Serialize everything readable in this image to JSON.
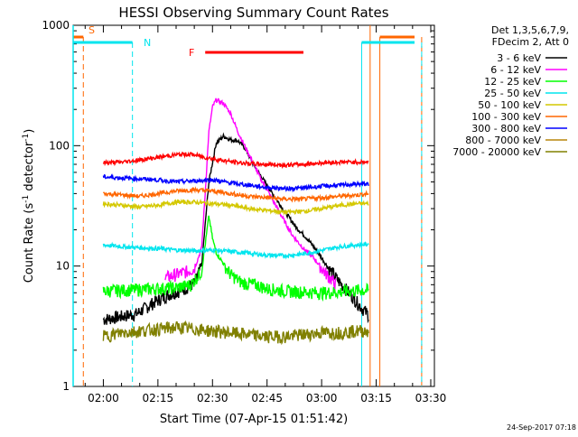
{
  "chart_data": {
    "type": "line",
    "title": "HESSI Observing Summary Count Rates",
    "xlabel": "Start Time (07-Apr-15 01:51:42)",
    "ylabel_parts": [
      "Count Rate (s",
      "-1",
      " detector",
      "-1",
      ")"
    ],
    "ylabel": "Count Rate (s-1 detector-1)",
    "x_range_minutes": [
      "01:51:42",
      "03:31:00"
    ],
    "x_ticks": [
      "02:00",
      "02:15",
      "02:30",
      "02:45",
      "03:00",
      "03:15",
      "03:30"
    ],
    "y_scale": "log",
    "ylim": [
      1,
      1000
    ],
    "y_ticks": [
      "1",
      "10",
      "100",
      "1000"
    ],
    "grid": false,
    "legend_position": "right",
    "legend_header": [
      "Det 1,3,5,6,7,9,",
      "FDecim 2, Att 0"
    ],
    "timestamp": "24-Sep-2017 07:18",
    "flags": [
      {
        "label": "S",
        "color": "#ff6600"
      },
      {
        "label": "N",
        "color": "#00e5ee"
      },
      {
        "label": "F",
        "color": "#ff0000"
      }
    ],
    "series": [
      {
        "name": "3 - 6 keV",
        "color": "#000000",
        "points": [
          [
            "02:00",
            3.6
          ],
          [
            "02:09",
            4.0
          ],
          [
            "02:14",
            5.0
          ],
          [
            "02:18",
            5.8
          ],
          [
            "02:22",
            6.4
          ],
          [
            "02:25",
            7.2
          ],
          [
            "02:27",
            10
          ],
          [
            "02:28",
            22
          ],
          [
            "02:29",
            50
          ],
          [
            "02:31",
            105
          ],
          [
            "02:33",
            120
          ],
          [
            "02:35",
            112
          ],
          [
            "02:37",
            110
          ],
          [
            "02:39",
            95
          ],
          [
            "02:41",
            72
          ],
          [
            "02:44",
            52
          ],
          [
            "02:47",
            38
          ],
          [
            "02:50",
            28
          ],
          [
            "02:53",
            21
          ],
          [
            "02:56",
            17
          ],
          [
            "02:59",
            13
          ],
          [
            "03:02",
            9.5
          ],
          [
            "03:05",
            7.3
          ],
          [
            "03:08",
            5.8
          ],
          [
            "03:11",
            4.5
          ],
          [
            "03:13",
            3.9
          ]
        ]
      },
      {
        "name": "6 - 12 keV",
        "color": "#ff00ff",
        "points": [
          [
            "02:17",
            8.0
          ],
          [
            "02:20",
            8.5
          ],
          [
            "02:23",
            9.0
          ],
          [
            "02:25",
            9.5
          ],
          [
            "02:27",
            14
          ],
          [
            "02:28",
            40
          ],
          [
            "02:29",
            130
          ],
          [
            "02:30",
            210
          ],
          [
            "02:31",
            240
          ],
          [
            "02:33",
            225
          ],
          [
            "02:35",
            185
          ],
          [
            "02:37",
            130
          ],
          [
            "02:40",
            85
          ],
          [
            "02:43",
            55
          ],
          [
            "02:46",
            38
          ],
          [
            "02:49",
            26
          ],
          [
            "02:52",
            18
          ],
          [
            "02:55",
            14
          ],
          [
            "02:58",
            11.5
          ],
          [
            "03:01",
            8.8
          ],
          [
            "03:04",
            7.0
          ]
        ]
      },
      {
        "name": "12 - 25 keV",
        "color": "#00ff00",
        "points": [
          [
            "02:00",
            6.2
          ],
          [
            "02:05",
            6.3
          ],
          [
            "02:10",
            6.4
          ],
          [
            "02:15",
            6.5
          ],
          [
            "02:20",
            6.6
          ],
          [
            "02:24",
            7.0
          ],
          [
            "02:27",
            9
          ],
          [
            "02:28",
            15
          ],
          [
            "02:29",
            26
          ],
          [
            "02:30",
            17
          ],
          [
            "02:31",
            13
          ],
          [
            "02:33",
            10.5
          ],
          [
            "02:35",
            8.5
          ],
          [
            "02:38",
            7.3
          ],
          [
            "02:42",
            7.0
          ],
          [
            "02:45",
            6.5
          ],
          [
            "02:50",
            6.2
          ],
          [
            "02:55",
            6.1
          ],
          [
            "03:00",
            6.0
          ],
          [
            "03:05",
            6.1
          ],
          [
            "03:10",
            6.3
          ],
          [
            "03:13",
            6.3
          ]
        ]
      },
      {
        "name": "25 - 50 keV",
        "color": "#00e5ee",
        "points": [
          [
            "02:00",
            15
          ],
          [
            "02:05",
            14.5
          ],
          [
            "02:10",
            14.2
          ],
          [
            "02:15",
            14.0
          ],
          [
            "02:20",
            13.6
          ],
          [
            "02:25",
            13.4
          ],
          [
            "02:28",
            13.5
          ],
          [
            "02:30",
            13.6
          ],
          [
            "02:35",
            13.2
          ],
          [
            "02:40",
            12.8
          ],
          [
            "02:45",
            12.3
          ],
          [
            "02:50",
            12.2
          ],
          [
            "02:55",
            12.6
          ],
          [
            "03:00",
            13.5
          ],
          [
            "03:05",
            14.5
          ],
          [
            "03:10",
            15.0
          ],
          [
            "03:13",
            15.2
          ]
        ]
      },
      {
        "name": "50 - 100 keV",
        "color": "#d4c800",
        "points": [
          [
            "02:00",
            33
          ],
          [
            "02:05",
            32
          ],
          [
            "02:10",
            31
          ],
          [
            "02:15",
            32
          ],
          [
            "02:20",
            34
          ],
          [
            "02:25",
            34
          ],
          [
            "02:30",
            33
          ],
          [
            "02:35",
            32
          ],
          [
            "02:40",
            30
          ],
          [
            "02:45",
            29
          ],
          [
            "02:50",
            28
          ],
          [
            "02:55",
            28.5
          ],
          [
            "03:00",
            30
          ],
          [
            "03:05",
            32
          ],
          [
            "03:10",
            33
          ],
          [
            "03:13",
            33
          ]
        ]
      },
      {
        "name": "100 - 300 keV",
        "color": "#ff6600",
        "points": [
          [
            "02:00",
            40
          ],
          [
            "02:05",
            39
          ],
          [
            "02:10",
            38
          ],
          [
            "02:15",
            40
          ],
          [
            "02:20",
            42
          ],
          [
            "02:25",
            43
          ],
          [
            "02:30",
            42
          ],
          [
            "02:35",
            40
          ],
          [
            "02:40",
            38
          ],
          [
            "02:45",
            37
          ],
          [
            "02:50",
            36
          ],
          [
            "02:55",
            36
          ],
          [
            "03:00",
            37
          ],
          [
            "03:05",
            38
          ],
          [
            "03:10",
            39
          ],
          [
            "03:13",
            40
          ]
        ]
      },
      {
        "name": "300 - 800 keV",
        "color": "#0000ff",
        "points": [
          [
            "02:00",
            55
          ],
          [
            "02:05",
            54
          ],
          [
            "02:10",
            53
          ],
          [
            "02:15",
            52
          ],
          [
            "02:20",
            50
          ],
          [
            "02:25",
            51
          ],
          [
            "02:30",
            52
          ],
          [
            "02:35",
            49
          ],
          [
            "02:40",
            47
          ],
          [
            "02:45",
            45
          ],
          [
            "02:50",
            44
          ],
          [
            "02:55",
            44.5
          ],
          [
            "03:00",
            46
          ],
          [
            "03:05",
            47
          ],
          [
            "03:10",
            48
          ],
          [
            "03:13",
            48
          ]
        ]
      },
      {
        "name": "800 - 7000 keV",
        "color": "#b8860b",
        "points": []
      },
      {
        "name": "7000 - 20000 keV",
        "color": "#808000",
        "points": [
          [
            "02:00",
            2.6
          ],
          [
            "02:05",
            2.8
          ],
          [
            "02:10",
            2.9
          ],
          [
            "02:15",
            3.0
          ],
          [
            "02:20",
            3.1
          ],
          [
            "02:25",
            3.0
          ],
          [
            "02:30",
            2.9
          ],
          [
            "02:35",
            2.8
          ],
          [
            "02:40",
            2.7
          ],
          [
            "02:45",
            2.6
          ],
          [
            "02:50",
            2.6
          ],
          [
            "02:55",
            2.7
          ],
          [
            "03:00",
            2.8
          ],
          [
            "03:05",
            2.8
          ],
          [
            "03:10",
            2.9
          ],
          [
            "03:13",
            2.9
          ]
        ]
      },
      {
        "name": "",
        "color": "#ff0000",
        "points": [
          [
            "02:00",
            72
          ],
          [
            "02:05",
            73
          ],
          [
            "02:10",
            76
          ],
          [
            "02:15",
            80
          ],
          [
            "02:20",
            84
          ],
          [
            "02:24",
            85
          ],
          [
            "02:28",
            80
          ],
          [
            "02:32",
            76
          ],
          [
            "02:36",
            73
          ],
          [
            "02:40",
            71
          ],
          [
            "02:45",
            70
          ],
          [
            "02:50",
            69
          ],
          [
            "02:55",
            70
          ],
          [
            "03:00",
            72
          ],
          [
            "03:05",
            73
          ],
          [
            "03:10",
            73
          ],
          [
            "03:13",
            73
          ]
        ]
      }
    ]
  }
}
